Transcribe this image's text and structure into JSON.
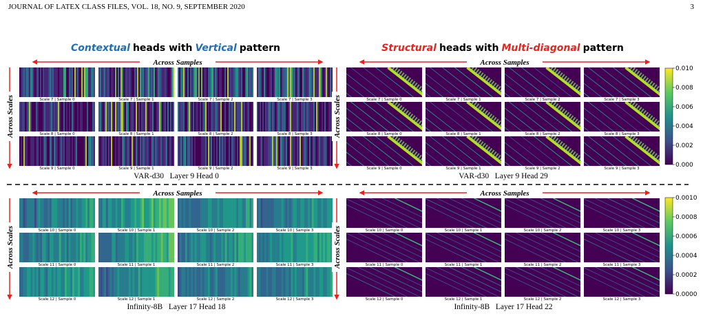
{
  "header": {
    "journal": "JOURNAL OF LATEX CLASS FILES, VOL. 18, NO. 9, SEPTEMBER 2020",
    "page": "3"
  },
  "titles": [
    {
      "accent1": "Contextual",
      "mid": "heads with",
      "accent2": "Vertical",
      "end": "pattern",
      "accent_color": "#1f6fb5"
    },
    {
      "accent1": "Structural",
      "mid": "heads with",
      "accent2": "Multi-diagonal",
      "end": "pattern",
      "accent_color": "#e8231d"
    }
  ],
  "quadrants": [
    {
      "pattern": "vertical",
      "across_samples": "Across Samples",
      "across_scales": "Across Scales",
      "labels": [
        [
          "Scale 7 | Sample 0",
          "Scale 7 | Sample 1",
          "Scale 7 | Sample 2",
          "Scale 7 | Sample 3"
        ],
        [
          "Scale 8 | Sample 0",
          "Scale 8 | Sample 1",
          "Scale 8 | Sample 2",
          "Scale 8 | Sample 3"
        ],
        [
          "Scale 9 | Sample 0",
          "Scale 9 | Sample 1",
          "Scale 9 | Sample 2",
          "Scale 9 | Sample 3"
        ]
      ],
      "caption": "VAR-d30   Layer 9 Head 0"
    },
    {
      "pattern": "diagonal",
      "across_samples": "Across Samples",
      "across_scales": "Across Scales",
      "labels": [
        [
          "Scale 7 | Sample 0",
          "Scale 7 | Sample 1",
          "Scale 7 | Sample 2",
          "Scale 7 | Sample 3"
        ],
        [
          "Scale 8 | Sample 0",
          "Scale 8 | Sample 1",
          "Scale 8 | Sample 2",
          "Scale 8 | Sample 3"
        ],
        [
          "Scale 9 | Sample 0",
          "Scale 9 | Sample 1",
          "Scale 9 | Sample 2",
          "Scale 9 | Sample 3"
        ]
      ],
      "caption": "VAR-d30   Layer 9 Head 29"
    },
    {
      "pattern": "vertical",
      "across_samples": "Across Samples",
      "across_scales": "Across Scales",
      "labels": [
        [
          "Scale 10 | Sample 0",
          "Scale 10 | Sample 1",
          "Scale 10 | Sample 2",
          "Scale 10 | Sample 3"
        ],
        [
          "Scale 11 | Sample 0",
          "Scale 11 | Sample 1",
          "Scale 11 | Sample 2",
          "Scale 11 | Sample 3"
        ],
        [
          "Scale 12 | Sample 0",
          "Scale 12 | Sample 1",
          "Scale 12 | Sample 2",
          "Scale 12 | Sample 3"
        ]
      ],
      "caption": "Infinity-8B   Layer 17 Head 18"
    },
    {
      "pattern": "diagonal",
      "across_samples": "Across Samples",
      "across_scales": "Across Scales",
      "labels": [
        [
          "Scale 10 | Sample 0",
          "Scale 10 | Sample 1",
          "Scale 10 | Sample 2",
          "Scale 10 | Sample 3"
        ],
        [
          "Scale 11 | Sample 0",
          "Scale 11 | Sample 1",
          "Scale 11 | Sample 2",
          "Scale 11 | Sample 3"
        ],
        [
          "Scale 12 | Sample 0",
          "Scale 12 | Sample 1",
          "Scale 12 | Sample 2",
          "Scale 12 | Sample 3"
        ]
      ],
      "caption": "Infinity-8B   Layer 17 Head 22"
    }
  ],
  "colorbars": [
    {
      "ticks": [
        "0.010",
        "0.008",
        "0.006",
        "0.004",
        "0.002",
        "0.000"
      ]
    },
    {
      "ticks": [
        "0.0010",
        "0.0008",
        "0.0006",
        "0.0004",
        "0.0002",
        "0.0000"
      ]
    }
  ]
}
